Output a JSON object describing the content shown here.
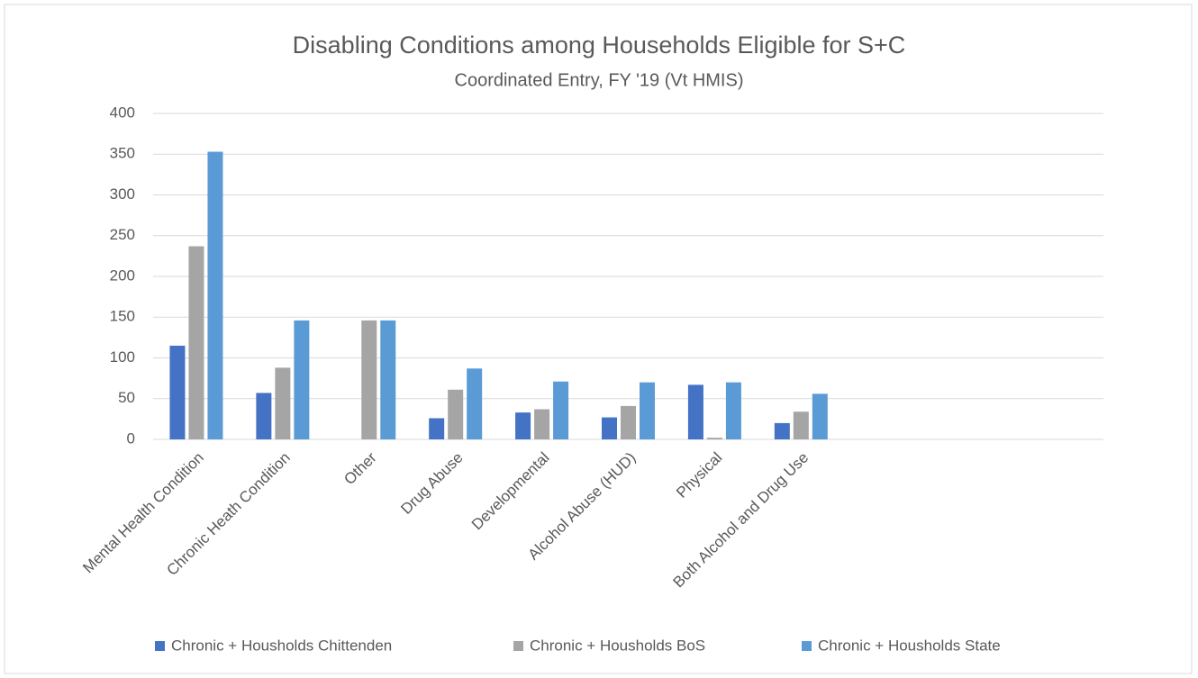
{
  "chart_data": {
    "type": "bar",
    "title": "Disabling Conditions among Households  Eligible for S+C",
    "subtitle": "Coordinated Entry, FY '19 (Vt HMIS)",
    "categories": [
      "Mental Health Condition",
      "Chronic Heath Condition",
      "Other",
      "Drug Abuse",
      "Developmental",
      "Alcohol Abuse (HUD)",
      "Physical",
      "Both Alcohol and Drug Use",
      null,
      null,
      null
    ],
    "series": [
      {
        "name": "Chronic + Housholds  Chittenden",
        "color": "#4472c4",
        "values": [
          115,
          57,
          0,
          26,
          33,
          27,
          67,
          20,
          null,
          null,
          null
        ]
      },
      {
        "name": "Chronic + Housholds  BoS",
        "color": "#a5a5a5",
        "values": [
          237,
          88,
          146,
          61,
          37,
          41,
          2,
          34,
          null,
          null,
          null
        ]
      },
      {
        "name": "Chronic + Housholds  State",
        "color": "#5b9bd5",
        "values": [
          353,
          146,
          146,
          87,
          71,
          70,
          70,
          56,
          null,
          null,
          null
        ]
      }
    ],
    "ylim": [
      0,
      400
    ],
    "yticks": [
      0,
      50,
      100,
      150,
      200,
      250,
      300,
      350,
      400
    ],
    "grid": true,
    "legend": "bottom"
  }
}
